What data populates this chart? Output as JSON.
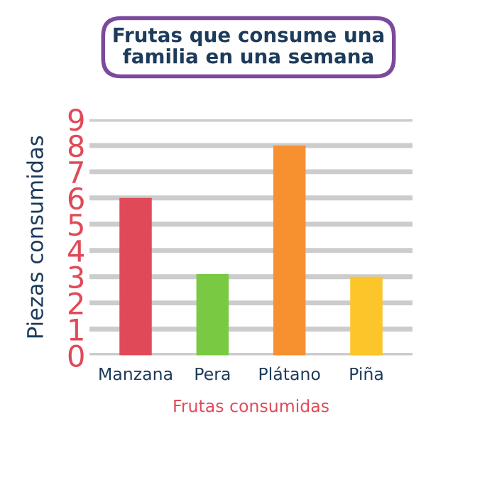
{
  "chart_data": {
    "type": "bar",
    "title": "Frutas que consume una\nfamilia en una semana",
    "xlabel": "Frutas consumidas",
    "ylabel": "Piezas consumidas",
    "categories": [
      "Manzana",
      "Pera",
      "Plátano",
      "Piña"
    ],
    "values": [
      6,
      3.1,
      8,
      3
    ],
    "colors": [
      "#e04a58",
      "#7ac943",
      "#f7902f",
      "#fcc52a"
    ],
    "ylim": [
      0,
      9
    ],
    "yticks": [
      0,
      1,
      2,
      3,
      4,
      5,
      6,
      7,
      8,
      9
    ],
    "grid": "y",
    "legend": false
  }
}
